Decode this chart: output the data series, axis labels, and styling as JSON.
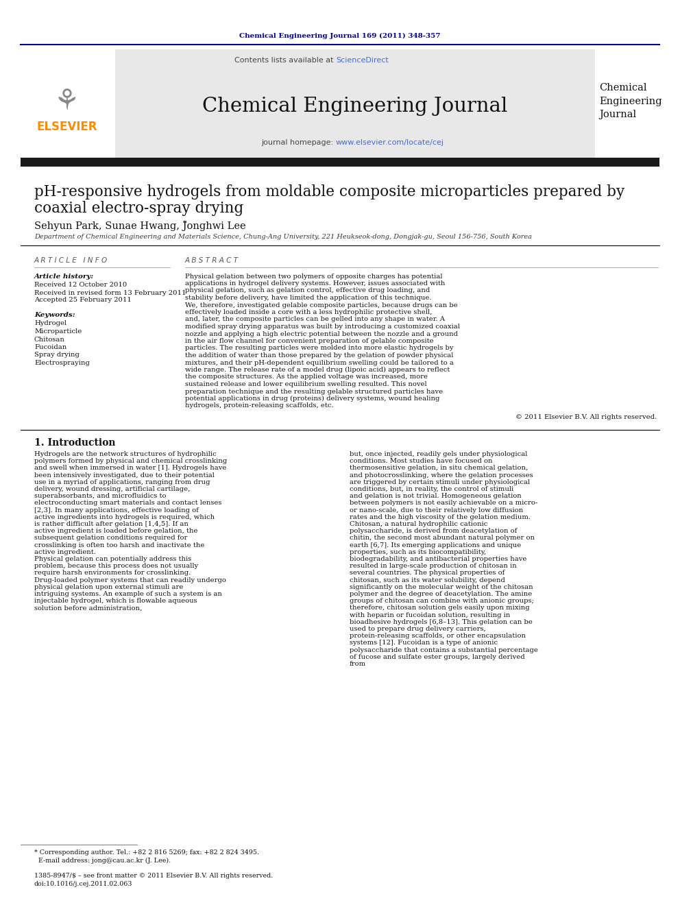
{
  "journal_ref": "Chemical Engineering Journal 169 (2011) 348-357",
  "journal_ref_color": "#00008B",
  "header_line_color": "#00008B",
  "header_bg_color": "#E8E8E8",
  "contents_text": "Contents lists available at ",
  "science_direct": "ScienceDirect",
  "science_direct_color": "#4169E1",
  "journal_title": "Chemical Engineering Journal",
  "journal_homepage_prefix": "journal homepage: ",
  "journal_homepage_url": "www.elsevier.com/locate/cej",
  "journal_homepage_color": "#4169E1",
  "elsevier_color": "#FF8C00",
  "sidebar_journal_title": "Chemical\nEngineering\nJournal",
  "black_bar_color": "#1a1a1a",
  "paper_title_line1": "pH-responsive hydrogels from moldable composite microparticles prepared by",
  "paper_title_line2": "coaxial electro-spray drying",
  "authors_main": "Sehyun Park, Sunae Hwang, Jonghwi Lee",
  "authors_star": "*",
  "affiliation": "Department of Chemical Engineering and Materials Science, Chung-Ang University, 221 Heukseok-dong, Dongjak-gu, Seoul 156-756, South Korea",
  "article_info_title": "A R T I C L E   I N F O",
  "abstract_title": "A B S T R A C T",
  "article_history_title": "Article history:",
  "received1": "Received 12 October 2010",
  "received2": "Received in revised form 13 February 2011",
  "accepted": "Accepted 25 February 2011",
  "keywords_title": "Keywords:",
  "keywords": [
    "Hydrogel",
    "Microparticle",
    "Chitosan",
    "Fucoidan",
    "Spray drying",
    "Electrospraying"
  ],
  "abstract_text": "Physical gelation between two polymers of opposite charges has potential applications in hydrogel delivery systems. However, issues associated with physical gelation, such as gelation control, effective drug loading, and stability before delivery, have limited the application of this technique. We, therefore, investigated gelable composite particles, because drugs can be effectively loaded inside a core with a less hydrophilic protective shell, and, later, the composite particles can be gelled into any shape in water. A modified spray drying apparatus was built by introducing a customized coaxial nozzle and applying a high electric potential between the nozzle and a ground in the air flow channel for convenient preparation of gelable composite particles. The resulting particles were molded into more elastic hydrogels by the addition of water than those prepared by the gelation of powder physical mixtures, and their pH-dependent equilibrium swelling could be tailored to a wide range. The release rate of a model drug (lipoic acid) appears to reflect the composite structures. As the applied voltage was increased, more sustained release and lower equilibrium swelling resulted. This novel preparation technique and the resulting gelable structured particles have potential applications in drug (proteins) delivery systems, wound healing hydrogels, protein-releasing scaffolds, etc.",
  "copyright": "© 2011 Elsevier B.V. All rights reserved.",
  "intro_heading": "1. Introduction",
  "intro_col1": "     Hydrogels are the network structures of hydrophilic polymers formed by physical and chemical crosslinking and swell when immersed in water [1]. Hydrogels have been intensively investigated, due to their potential use in a myriad of applications, ranging from drug delivery, wound dressing, artificial cartilage, superabsorbants, and microfluidics to electroconducting smart materials and contact lenses [2,3]. In many applications, effective loading of active ingredients into hydrogels is required, which is rather difficult after gelation [1,4,5]. If an active ingredient is loaded before gelation, the subsequent gelation conditions required for crosslinking is often too harsh and inactivate the active ingredient.\n     Physical gelation can potentially address this problem, because this process does not usually require harsh environments for crosslinking. Drug-loaded polymer systems that can readily undergo physical gelation upon external stimuli are intriguing systems. An example of such a system is an injectable hydrogel, which is flowable aqueous solution before administration,",
  "intro_col2": "but, once injected, readily gels under physiological conditions. Most studies have focused on thermosensitive gelation, in situ chemical gelation, and photocrosslinking, where the gelation processes are triggered by certain stimuli under physiological conditions, but, in reality, the control of stimuli and gelation is not trivial. Homogeneous gelation between polymers is not easily achievable on a micro- or nano-scale, due to their relatively low diffusion rates and the high viscosity of the gelation medium.\n     Chitosan, a natural hydrophilic cationic polysaccharide, is derived from deacetylation of chitin, the second most abundant natural polymer on earth [6,7]. Its emerging applications and unique properties, such as its biocompatibility, biodegradability, and antibacterial properties have resulted in large-scale production of chitosan in several countries. The physical properties of chitosan, such as its water solubility, depend significantly on the molecular weight of the chitosan polymer and the degree of deacetylation. The amine groups of chitosan can combine with anionic groups; therefore, chitosan solution gels easily upon mixing with heparin or fucoidan solution, resulting in bioadhesive hydrogels [6,8–13]. This gelation can be used to prepare drug delivery carriers, protein-releasing scaffolds, or other encapsulation systems [12]. Fucoidan is a type of anionic polysaccharide that contains a substantial percentage of fucose and sulfate ester groups, largely derived from",
  "footnote1": "* Corresponding author. Tel.: +82 2 816 5269; fax: +82 2 824 3495.",
  "footnote2": "  E-mail address: jong@cau.ac.kr (J. Lee).",
  "footnote3": "1385-8947/$ – see front matter © 2011 Elsevier B.V. All rights reserved.",
  "footnote4": "doi:10.1016/j.cej.2011.02.063",
  "bg_color": "#FFFFFF",
  "text_color": "#000000"
}
